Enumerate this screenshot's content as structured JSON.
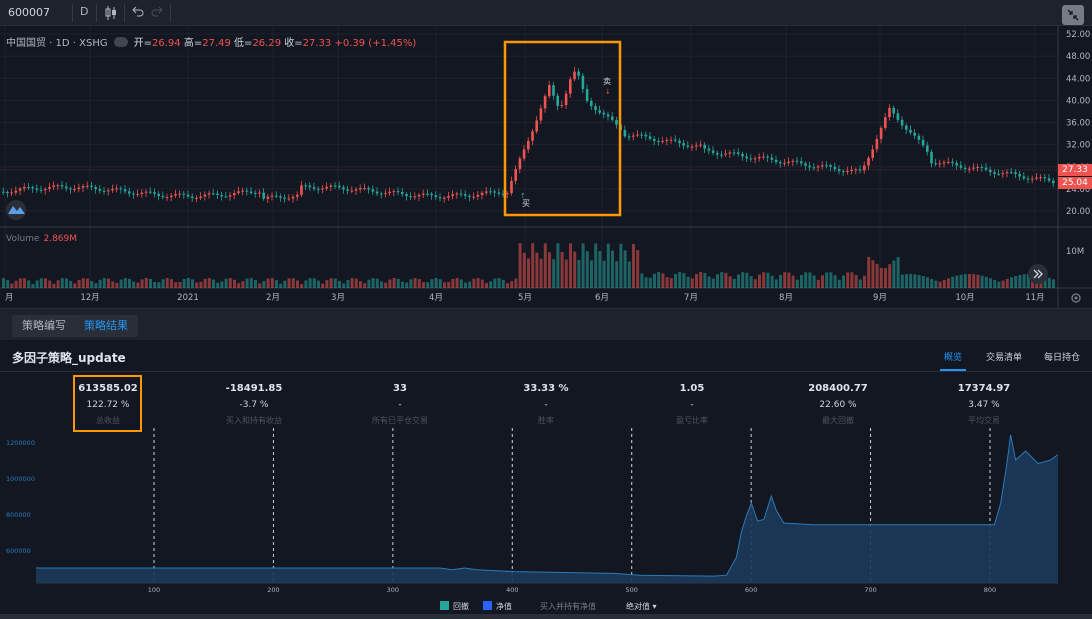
{
  "toolbar": {
    "symbol": "600007",
    "interval": "D",
    "candle_icon": "candlestick-icon",
    "undo_icon": "undo-icon",
    "redo_icon": "redo-icon",
    "fullscreen_icon": "collapse-icon"
  },
  "legend": {
    "title": "中国国贸 · 1D · XSHG",
    "open_k": "开=",
    "open": "26.94",
    "high_k": "高=",
    "high": "27.49",
    "low_k": "低=",
    "low": "26.29",
    "close_k": "收=",
    "close": "27.33",
    "change": "+0.39 (+1.45%)"
  },
  "volume": {
    "label": "Volume",
    "value": "2.869M",
    "axis": "10M"
  },
  "price_axis": [
    "52.00",
    "48.00",
    "44.00",
    "40.00",
    "36.00",
    "32.00",
    "28.00",
    "24.00",
    "20.00"
  ],
  "price_tags": {
    "last": "27.33",
    "other": "25.04"
  },
  "time_axis": [
    "月",
    "12月",
    "2021",
    "2月",
    "3月",
    "4月",
    "5月",
    "6月",
    "7月",
    "8月",
    "9月",
    "10月",
    "11月"
  ],
  "markers": {
    "buy": "买",
    "sell": "卖"
  },
  "tabs": [
    "策略编写",
    "策略结果"
  ],
  "strategy": {
    "title": "多因子策略_update",
    "tabs": [
      "概览",
      "交易清单",
      "每日持仓"
    ]
  },
  "stats": [
    {
      "v1": "613585.02",
      "v2": "122.72 %",
      "label": "总收益"
    },
    {
      "v1": "-18491.85",
      "v2": "-3.7 %",
      "label": "买入和持有收益"
    },
    {
      "v1": "33",
      "v2": "-",
      "label": "所有已平仓交易"
    },
    {
      "v1": "33.33 %",
      "v2": "-",
      "label": "胜率"
    },
    {
      "v1": "1.05",
      "v2": "-",
      "label": "盈亏比率"
    },
    {
      "v1": "208400.77",
      "v2": "22.60 %",
      "label": "最大回撤"
    },
    {
      "v1": "17374.97",
      "v2": "3.47 %",
      "label": "平均交易"
    }
  ],
  "equity_chart": {
    "y_ticks": [
      "1200000",
      "1000000",
      "800000",
      "600000"
    ],
    "x_ticks": [
      "100",
      "200",
      "300",
      "400",
      "500",
      "600",
      "700",
      "800"
    ],
    "legend": [
      "回撤",
      "净值",
      "买入并持有净值",
      "绝对值 ▾"
    ],
    "colors": {
      "drawdown": "#26a69a",
      "equity": "#2962ff",
      "fill": "#1c3a5a",
      "line": "#2a7ab8"
    }
  },
  "colors": {
    "up": "#ef5350",
    "down": "#26a69a",
    "highlight": "#ff9800",
    "accent": "#2196f3"
  }
}
